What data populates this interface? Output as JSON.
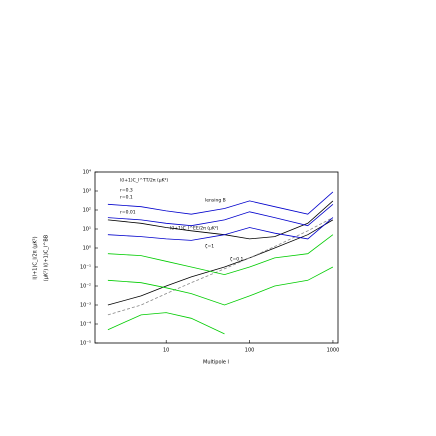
{
  "chart_data": {
    "type": "line",
    "y_label": "l(l+1)C_l/2π (μK²)",
    "y2_label": "(μK²) l(l+1)C_l^BB",
    "x_label": "Multipole l",
    "x": [
      2,
      5,
      10,
      20,
      50,
      100,
      200,
      500,
      1000
    ],
    "xlim": [
      1.4,
      1150
    ],
    "xticks": [
      10,
      100,
      1000
    ],
    "log_x": true,
    "ylim": [
      1e-05,
      10000
    ],
    "yticks": [
      {
        "value": 1e-05,
        "label": "10⁻⁵"
      },
      {
        "value": 0.0001,
        "label": "10⁻⁴"
      },
      {
        "value": 0.001,
        "label": "10⁻³"
      },
      {
        "value": 0.01,
        "label": "10⁻²"
      },
      {
        "value": 0.1,
        "label": "10⁻¹"
      },
      {
        "value": 1,
        "label": "10⁰"
      },
      {
        "value": 10,
        "label": "10¹"
      },
      {
        "value": 100,
        "label": "10²"
      },
      {
        "value": 1000,
        "label": "10³"
      },
      {
        "value": 10000,
        "label": "10⁴"
      }
    ],
    "log_y": true,
    "series": [
      {
        "color": "#000000",
        "values": [
          0.001,
          0.003,
          0.01,
          0.03,
          0.1,
          0.3,
          1,
          5,
          30
        ]
      },
      {
        "color": "#000000",
        "values": [
          30,
          20,
          12,
          8,
          5,
          3,
          4,
          20,
          300
        ]
      },
      {
        "color": "#888888",
        "dashed": true,
        "values": [
          0.0003,
          0.001,
          0.004,
          0.015,
          0.08,
          0.3,
          1.2,
          8,
          40
        ]
      },
      {
        "color": "#0000cc",
        "values": [
          200,
          150,
          90,
          60,
          120,
          300,
          150,
          60,
          900
        ]
      },
      {
        "color": "#0000cc",
        "values": [
          40,
          30,
          20,
          15,
          30,
          80,
          40,
          15,
          200
        ]
      },
      {
        "color": "#0000cc",
        "values": [
          5,
          4,
          3,
          2.5,
          5,
          12,
          6,
          3,
          40
        ]
      },
      {
        "color": "#00cc00",
        "values": [
          0.5,
          0.4,
          0.2,
          0.1,
          0.04,
          0.1,
          0.3,
          0.5,
          5
        ]
      },
      {
        "color": "#00cc00",
        "values": [
          0.02,
          0.015,
          0.008,
          0.004,
          0.001,
          0.003,
          0.01,
          0.02,
          0.1
        ]
      },
      {
        "color": "#00cc00",
        "values": [
          5e-05,
          0.0003,
          0.0004,
          0.0002,
          3e-05,
          null,
          null,
          null,
          null
        ]
      }
    ],
    "annotations": [
      "l(l+1)C_l^TT/2π (μK²)",
      "r=0.3",
      "r=0.1",
      "r=0.01",
      "lensing B",
      "l(l+1)C_l^EE/2π (μK²)",
      "ζ=1",
      "ζ=0.1"
    ]
  }
}
